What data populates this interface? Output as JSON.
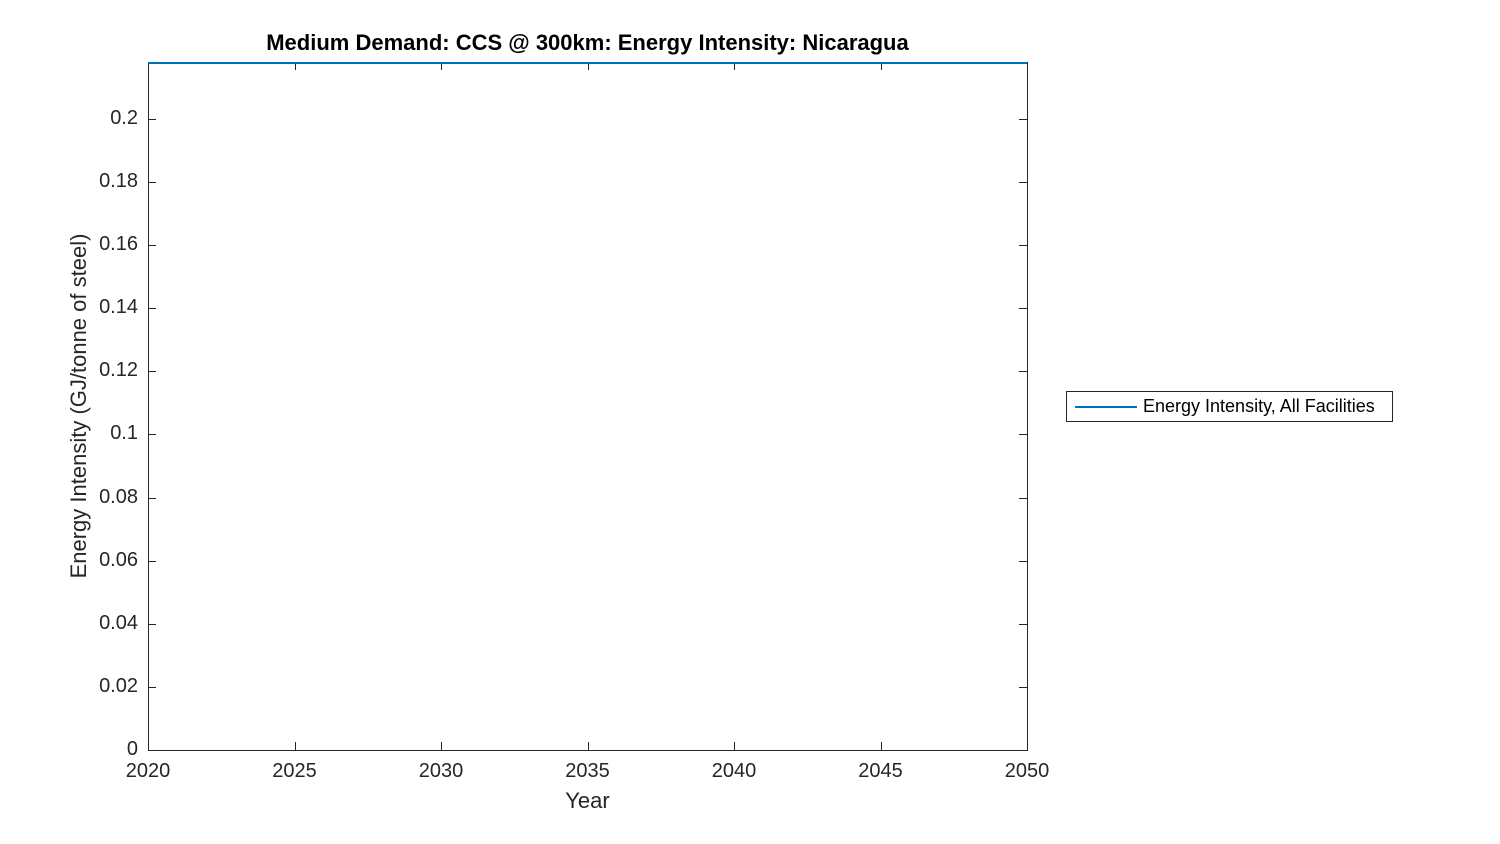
{
  "figure": {
    "background": "#ffffff"
  },
  "chart_data": {
    "type": "line",
    "title": "Medium Demand: CCS @ 300km: Energy Intensity: Nicaragua",
    "xlabel": "Year",
    "ylabel": "Energy Intensity (GJ/tonne of steel)",
    "xlim": [
      2020,
      2050
    ],
    "ylim": [
      0,
      0.218
    ],
    "xticks": [
      2020,
      2025,
      2030,
      2035,
      2040,
      2045,
      2050
    ],
    "xtick_labels": [
      "2020",
      "2025",
      "2030",
      "2035",
      "2040",
      "2045",
      "2050"
    ],
    "yticks": [
      0,
      0.02,
      0.04,
      0.06,
      0.08,
      0.1,
      0.12,
      0.14,
      0.16,
      0.18,
      0.2
    ],
    "ytick_labels": [
      "0",
      "0.02",
      "0.04",
      "0.06",
      "0.08",
      "0.1",
      "0.12",
      "0.14",
      "0.16",
      "0.18",
      "0.2"
    ],
    "grid": false,
    "axis_color": "#262626",
    "tick_direction": "in",
    "box": true,
    "legend_position": "outside-right",
    "series": [
      {
        "name": "Energy Intensity, All Facilities",
        "color": "#0072BD",
        "x": [
          2020,
          2025,
          2030,
          2035,
          2040,
          2045,
          2050
        ],
        "y": [
          0.2177,
          0.2177,
          0.2177,
          0.2177,
          0.2177,
          0.2177,
          0.2177
        ],
        "description": "constant horizontal line at the top edge of the axes"
      }
    ]
  }
}
